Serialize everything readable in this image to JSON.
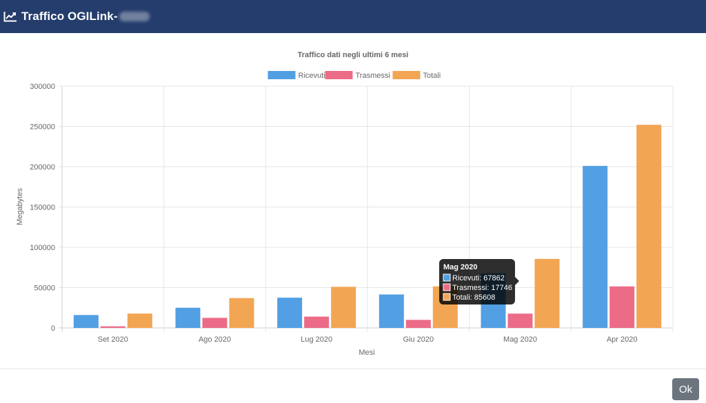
{
  "header": {
    "title": "Traffico OGILink-",
    "icon": "chart-line-icon"
  },
  "footer": {
    "ok_label": "Ok"
  },
  "chart_data": {
    "type": "bar",
    "title": "Traffico dati negli ultimi 6 mesi",
    "xlabel": "Mesi",
    "ylabel": "Megabytes",
    "ylim": [
      0,
      300000
    ],
    "yticks": [
      0,
      50000,
      100000,
      150000,
      200000,
      250000,
      300000
    ],
    "categories": [
      "Set 2020",
      "Ago 2020",
      "Lug 2020",
      "Giu 2020",
      "Mag 2020",
      "Apr 2020"
    ],
    "series": [
      {
        "name": "Ricevuti",
        "color": "#529fe3",
        "values": [
          16000,
          25000,
          37500,
          41500,
          67862,
          201000
        ]
      },
      {
        "name": "Trasmessi",
        "color": "#ec6c88",
        "values": [
          2000,
          12500,
          14000,
          10000,
          17746,
          51500
        ]
      },
      {
        "name": "Totali",
        "color": "#f2a553",
        "values": [
          17800,
          37000,
          51000,
          51500,
          85608,
          252000
        ]
      }
    ],
    "legend_position": "top",
    "grid": true,
    "tooltip": {
      "title": "Mag 2020",
      "lines": [
        "Ricevuti: 67862",
        "Trasmessi: 17746",
        "Totali: 85608"
      ]
    }
  }
}
